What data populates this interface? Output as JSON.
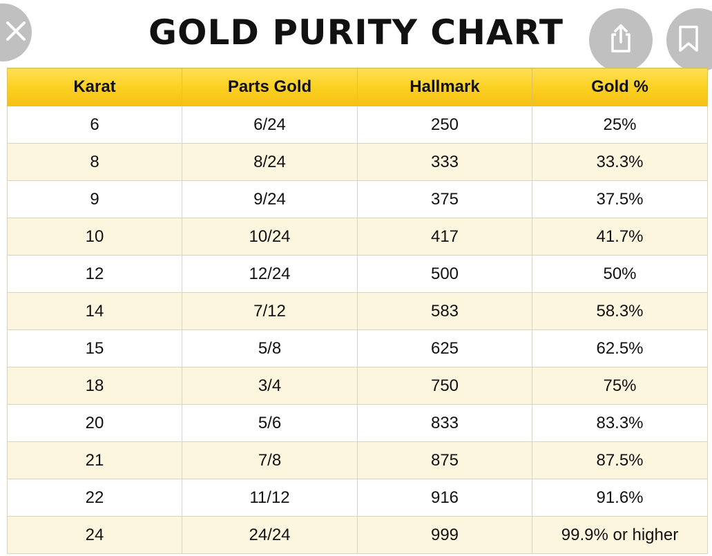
{
  "title": "GOLD PURITY CHART",
  "colors": {
    "header_gold": "#fbcf1e",
    "stripe": "#fdf6df",
    "overlay_button": "#8c8c8c"
  },
  "overlay": {
    "close_icon": "close-icon",
    "share_icon": "share-icon",
    "bookmark_icon": "bookmark-icon"
  },
  "table": {
    "headers": [
      "Karat",
      "Parts Gold",
      "Hallmark",
      "Gold %"
    ],
    "rows": [
      [
        "6",
        "6/24",
        "250",
        "25%"
      ],
      [
        "8",
        "8/24",
        "333",
        "33.3%"
      ],
      [
        "9",
        "9/24",
        "375",
        "37.5%"
      ],
      [
        "10",
        "10/24",
        "417",
        "41.7%"
      ],
      [
        "12",
        "12/24",
        "500",
        "50%"
      ],
      [
        "14",
        "7/12",
        "583",
        "58.3%"
      ],
      [
        "15",
        "5/8",
        "625",
        "62.5%"
      ],
      [
        "18",
        "3/4",
        "750",
        "75%"
      ],
      [
        "20",
        "5/6",
        "833",
        "83.3%"
      ],
      [
        "21",
        "7/8",
        "875",
        "87.5%"
      ],
      [
        "22",
        "11/12",
        "916",
        "91.6%"
      ],
      [
        "24",
        "24/24",
        "999",
        "99.9% or higher"
      ]
    ]
  }
}
